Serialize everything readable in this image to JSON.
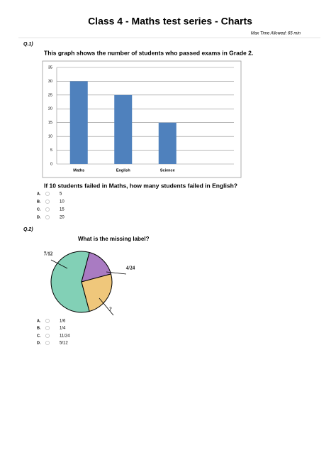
{
  "header": {
    "title": "Class 4 - Maths test series - Charts",
    "subtitle": "Max Time Allowed: 65 min"
  },
  "chart_data": [
    {
      "type": "bar",
      "title": "This graph shows the number of students who passed exams in Grade 2.",
      "categories": [
        "Maths",
        "English",
        "Science",
        null
      ],
      "values": [
        30,
        25,
        15,
        null
      ],
      "color": "#4f81bd",
      "ylim": [
        0,
        35
      ],
      "yticks": [
        0,
        5,
        10,
        15,
        20,
        25,
        30,
        35
      ],
      "grid": true
    },
    {
      "type": "pie",
      "title": "What is the missing label?",
      "categories": [
        "7/12",
        "4/24",
        "?"
      ],
      "values": [
        0.5833,
        0.1667,
        0.25
      ],
      "value_labels": [
        "7/12",
        "4/24",
        "?"
      ],
      "colors": [
        "#82d0b6",
        "#a97bc2",
        "#efc77b"
      ]
    }
  ],
  "questions": [
    {
      "label": "Q.1)",
      "question": "If 10 students failed in Maths, how many students failed in English?",
      "options": [
        {
          "letter": "A.",
          "text": "5"
        },
        {
          "letter": "B.",
          "text": "10"
        },
        {
          "letter": "C.",
          "text": "15"
        },
        {
          "letter": "D.",
          "text": "20"
        }
      ]
    },
    {
      "label": "Q.2)",
      "options": [
        {
          "letter": "A.",
          "text": "1/6"
        },
        {
          "letter": "B.",
          "text": "1/4"
        },
        {
          "letter": "C.",
          "text": "11/24"
        },
        {
          "letter": "D.",
          "text": "5/12"
        }
      ]
    }
  ]
}
